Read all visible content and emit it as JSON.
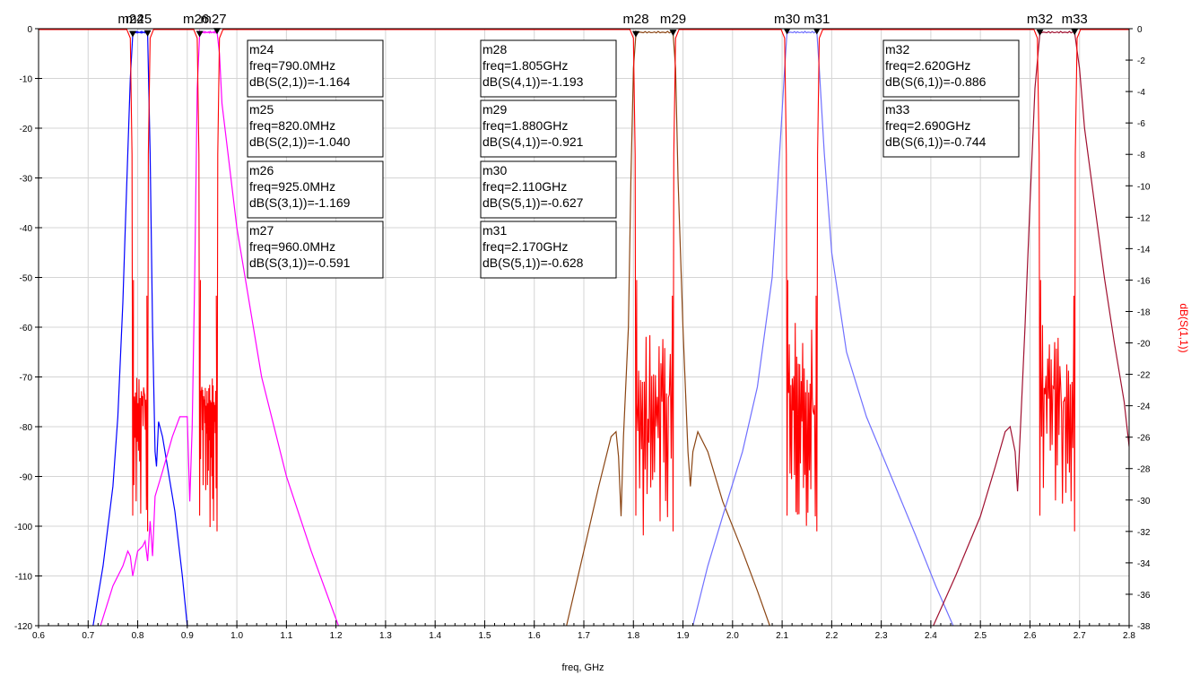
{
  "chart_data": {
    "type": "line",
    "xlabel": "freq, GHz",
    "ylabel_right": "dB(S(1,1))",
    "xlim": [
      0.6,
      2.8
    ],
    "x_ticks": [
      0.6,
      0.7,
      0.8,
      0.9,
      1.0,
      1.1,
      1.2,
      1.3,
      1.4,
      1.5,
      1.6,
      1.7,
      1.8,
      1.9,
      2.0,
      2.1,
      2.2,
      2.3,
      2.4,
      2.5,
      2.6,
      2.7,
      2.8
    ],
    "x_tick_labels": [
      "0.6",
      "0.7",
      "0.8",
      "0.9",
      "1.0",
      "1.1",
      "1.2",
      "1.3",
      "1.4",
      "1.5",
      "1.6",
      "1.7",
      "1.8",
      "1.9",
      "2.0",
      "2.1",
      "2.2",
      "2.3",
      "2.4",
      "2.5",
      "2.6",
      "2.7",
      "2.8"
    ],
    "ylim_left": [
      -120,
      0
    ],
    "y_left_ticks": [
      0,
      -10,
      -20,
      -30,
      -40,
      -50,
      -60,
      -70,
      -80,
      -90,
      -100,
      -110,
      -120
    ],
    "y_left_tick_labels": [
      "0",
      "-10",
      "-20",
      "-30",
      "-40",
      "-50",
      "-60",
      "-70",
      "-80",
      "-90",
      "-100",
      "-110",
      "-120"
    ],
    "ylim_right": [
      -38,
      0
    ],
    "y_right_ticks": [
      0,
      -2,
      -4,
      -6,
      -8,
      -10,
      -12,
      -14,
      -16,
      -18,
      -20,
      -22,
      -24,
      -26,
      -28,
      -30,
      -32,
      -34,
      -36,
      -38
    ],
    "y_right_tick_labels": [
      "0",
      "-2",
      "-4",
      "-6",
      "-8",
      "-10",
      "-12",
      "-14",
      "-16",
      "-18",
      "-20",
      "-22",
      "-24",
      "-26",
      "-28",
      "-30",
      "-32",
      "-34",
      "-36",
      "-38"
    ],
    "grid": true,
    "colors": {
      "s11": "#ff0000",
      "s21": "#0000ff",
      "s31": "#ff00ff",
      "s41": "#8b4513",
      "s51": "#7070ff",
      "s61": "#a01030"
    },
    "series": [
      {
        "key": "s21",
        "stop_lo": [
          [
            0.71,
            -120
          ],
          [
            0.73,
            -108
          ],
          [
            0.75,
            -92
          ],
          [
            0.76,
            -78
          ],
          [
            0.77,
            -55
          ],
          [
            0.775,
            -40
          ],
          [
            0.78,
            -25
          ],
          [
            0.785,
            -10
          ],
          [
            0.79,
            -1.2
          ]
        ],
        "pass": [
          0.79,
          0.82
        ],
        "stop_hi": [
          [
            0.82,
            -1.0
          ],
          [
            0.825,
            -25
          ],
          [
            0.83,
            -60
          ],
          [
            0.835,
            -85
          ],
          [
            0.838,
            -88
          ],
          [
            0.842,
            -79
          ],
          [
            0.85,
            -82
          ],
          [
            0.86,
            -88
          ],
          [
            0.875,
            -97
          ],
          [
            0.89,
            -110
          ],
          [
            0.9,
            -120
          ]
        ]
      },
      {
        "key": "s31",
        "stop_lo": [
          [
            0.725,
            -120
          ],
          [
            0.75,
            -112
          ],
          [
            0.77,
            -108
          ],
          [
            0.78,
            -105
          ],
          [
            0.785,
            -106
          ],
          [
            0.79,
            -110
          ],
          [
            0.8,
            -105
          ],
          [
            0.81,
            -104
          ],
          [
            0.815,
            -103
          ],
          [
            0.82,
            -107
          ],
          [
            0.825,
            -99
          ],
          [
            0.83,
            -106
          ],
          [
            0.835,
            -94
          ],
          [
            0.85,
            -89
          ],
          [
            0.87,
            -82
          ],
          [
            0.885,
            -78
          ],
          [
            0.9,
            -78
          ],
          [
            0.905,
            -95
          ],
          [
            0.91,
            -80
          ],
          [
            0.915,
            -50
          ],
          [
            0.92,
            -12
          ],
          [
            0.925,
            -1.2
          ]
        ],
        "pass": [
          0.925,
          0.96
        ],
        "stop_hi": [
          [
            0.96,
            -0.6
          ],
          [
            0.965,
            -5
          ],
          [
            0.97,
            -15
          ],
          [
            1.0,
            -40
          ],
          [
            1.05,
            -70
          ],
          [
            1.1,
            -90
          ],
          [
            1.15,
            -105
          ],
          [
            1.205,
            -120
          ]
        ]
      },
      {
        "key": "s41",
        "stop_lo": [
          [
            1.665,
            -120
          ],
          [
            1.7,
            -105
          ],
          [
            1.73,
            -92
          ],
          [
            1.755,
            -82
          ],
          [
            1.765,
            -81
          ],
          [
            1.77,
            -86
          ],
          [
            1.775,
            -98
          ],
          [
            1.78,
            -82
          ],
          [
            1.79,
            -60
          ],
          [
            1.795,
            -30
          ],
          [
            1.8,
            -8
          ],
          [
            1.805,
            -1.2
          ]
        ],
        "pass": [
          1.805,
          1.88
        ],
        "stop_hi": [
          [
            1.88,
            -0.9
          ],
          [
            1.885,
            -8
          ],
          [
            1.89,
            -30
          ],
          [
            1.9,
            -60
          ],
          [
            1.91,
            -85
          ],
          [
            1.915,
            -92
          ],
          [
            1.92,
            -85
          ],
          [
            1.93,
            -81
          ],
          [
            1.95,
            -85
          ],
          [
            1.98,
            -95
          ],
          [
            2.02,
            -105
          ],
          [
            2.05,
            -113
          ],
          [
            2.075,
            -120
          ]
        ]
      },
      {
        "key": "s51",
        "stop_lo": [
          [
            1.92,
            -120
          ],
          [
            1.95,
            -108
          ],
          [
            1.98,
            -98
          ],
          [
            2.02,
            -85
          ],
          [
            2.05,
            -72
          ],
          [
            2.08,
            -50
          ],
          [
            2.095,
            -25
          ],
          [
            2.105,
            -8
          ],
          [
            2.11,
            -0.6
          ]
        ],
        "pass": [
          2.11,
          2.17
        ],
        "stop_hi": [
          [
            2.17,
            -0.6
          ],
          [
            2.175,
            -8
          ],
          [
            2.185,
            -25
          ],
          [
            2.2,
            -45
          ],
          [
            2.23,
            -65
          ],
          [
            2.27,
            -78
          ],
          [
            2.32,
            -90
          ],
          [
            2.37,
            -102
          ],
          [
            2.41,
            -112
          ],
          [
            2.445,
            -120
          ]
        ]
      },
      {
        "key": "s61",
        "stop_lo": [
          [
            2.405,
            -120
          ],
          [
            2.45,
            -110
          ],
          [
            2.5,
            -98
          ],
          [
            2.53,
            -88
          ],
          [
            2.55,
            -81
          ],
          [
            2.56,
            -80
          ],
          [
            2.57,
            -85
          ],
          [
            2.575,
            -93
          ],
          [
            2.58,
            -82
          ],
          [
            2.59,
            -60
          ],
          [
            2.6,
            -35
          ],
          [
            2.61,
            -12
          ],
          [
            2.62,
            -0.9
          ]
        ],
        "pass": [
          2.62,
          2.69
        ],
        "stop_hi": [
          [
            2.69,
            -0.7
          ],
          [
            2.7,
            -8
          ],
          [
            2.71,
            -20
          ],
          [
            2.73,
            -35
          ],
          [
            2.75,
            -50
          ],
          [
            2.77,
            -63
          ],
          [
            2.79,
            -75
          ],
          [
            2.8,
            -84
          ]
        ]
      }
    ],
    "s11_bands": [
      [
        0.79,
        0.82
      ],
      [
        0.925,
        0.96
      ],
      [
        1.805,
        1.88
      ],
      [
        2.11,
        2.17
      ],
      [
        2.62,
        2.69
      ]
    ],
    "markers": [
      {
        "name": "m24",
        "x": 0.79,
        "y": -1.164
      },
      {
        "name": "m25",
        "x": 0.82,
        "y": -1.04
      },
      {
        "name": "m26",
        "x": 0.925,
        "y": -1.169
      },
      {
        "name": "m27",
        "x": 0.96,
        "y": -0.591
      },
      {
        "name": "m28",
        "x": 1.805,
        "y": -1.193
      },
      {
        "name": "m29",
        "x": 1.88,
        "y": -0.921
      },
      {
        "name": "m30",
        "x": 2.11,
        "y": -0.627
      },
      {
        "name": "m31",
        "x": 2.17,
        "y": -0.628
      },
      {
        "name": "m32",
        "x": 2.62,
        "y": -0.886
      },
      {
        "name": "m33",
        "x": 2.69,
        "y": -0.744
      }
    ],
    "marker_top_labels": [
      {
        "text": "m24",
        "x": 0.79,
        "dx": -2
      },
      {
        "text": "m25",
        "x": 0.82,
        "dx": -10
      },
      {
        "text": "m26",
        "x": 0.925,
        "dx": -4
      },
      {
        "text": "m27",
        "x": 0.96,
        "dx": -4
      },
      {
        "text": "m28",
        "x": 1.805,
        "dx": 0
      },
      {
        "text": "m29",
        "x": 1.88,
        "dx": 0
      },
      {
        "text": "m30",
        "x": 2.11,
        "dx": 0
      },
      {
        "text": "m31",
        "x": 2.17,
        "dx": 0
      },
      {
        "text": "m32",
        "x": 2.62,
        "dx": 0
      },
      {
        "text": "m33",
        "x": 2.69,
        "dx": 0
      }
    ],
    "readouts": [
      {
        "col": 0,
        "row": 0,
        "lines": [
          "m24",
          "freq=790.0MHz",
          "dB(S(2,1))=-1.164"
        ]
      },
      {
        "col": 0,
        "row": 1,
        "lines": [
          "m25",
          "freq=820.0MHz",
          "dB(S(2,1))=-1.040"
        ]
      },
      {
        "col": 0,
        "row": 2,
        "lines": [
          "m26",
          "freq=925.0MHz",
          "dB(S(3,1))=-1.169"
        ]
      },
      {
        "col": 0,
        "row": 3,
        "lines": [
          "m27",
          "freq=960.0MHz",
          "dB(S(3,1))=-0.591"
        ]
      },
      {
        "col": 1,
        "row": 0,
        "lines": [
          "m28",
          "freq=1.805GHz",
          "dB(S(4,1))=-1.193"
        ]
      },
      {
        "col": 1,
        "row": 1,
        "lines": [
          "m29",
          "freq=1.880GHz",
          "dB(S(4,1))=-0.921"
        ]
      },
      {
        "col": 1,
        "row": 2,
        "lines": [
          "m30",
          "freq=2.110GHz",
          "dB(S(5,1))=-0.627"
        ]
      },
      {
        "col": 1,
        "row": 3,
        "lines": [
          "m31",
          "freq=2.170GHz",
          "dB(S(5,1))=-0.628"
        ]
      },
      {
        "col": 2,
        "row": 0,
        "lines": [
          "m32",
          "freq=2.620GHz",
          "dB(S(6,1))=-0.886"
        ]
      },
      {
        "col": 2,
        "row": 1,
        "lines": [
          "m33",
          "freq=2.690GHz",
          "dB(S(6,1))=-0.744"
        ]
      }
    ]
  }
}
